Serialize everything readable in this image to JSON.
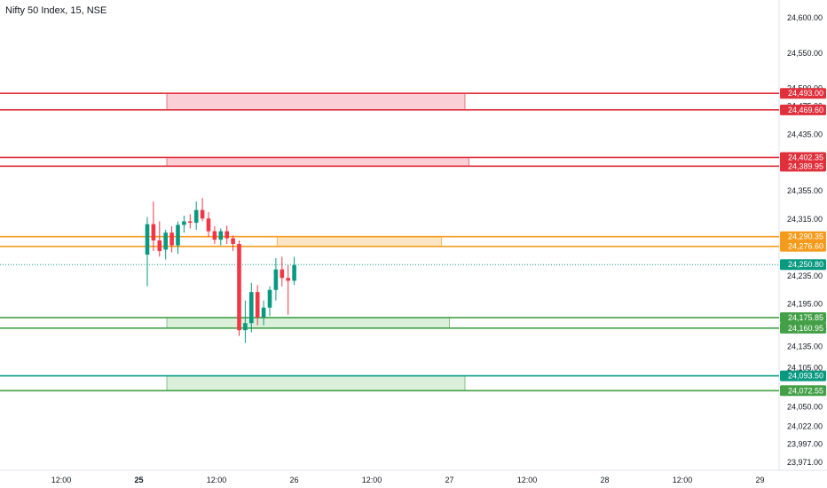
{
  "header": {
    "title": "Nifty 50 Index, 15, NSE"
  },
  "colors": {
    "red": "#e0303c",
    "red_fill": "#f9c8cf",
    "orange": "#f59b1c",
    "orange_fill": "#fde2bb",
    "green": "#43a047",
    "green_fill": "#d3edd4",
    "teal": "#089981",
    "candle_up": "#089981",
    "candle_down": "#f23645",
    "last_price": "#089981"
  },
  "chart_data": {
    "type": "candlestick",
    "symbol": "Nifty 50 Index, 15, NSE",
    "x_ticks": [
      {
        "label": "12:00",
        "bold": false
      },
      {
        "label": "25",
        "bold": true
      },
      {
        "label": "12:00",
        "bold": false
      },
      {
        "label": "26",
        "bold": false
      },
      {
        "label": "12:00",
        "bold": false
      },
      {
        "label": "27",
        "bold": false
      },
      {
        "label": "12:00",
        "bold": false
      },
      {
        "label": "28",
        "bold": false
      },
      {
        "label": "12:00",
        "bold": false
      },
      {
        "label": "29",
        "bold": false
      }
    ],
    "y_ticks": [
      "24,600.00",
      "24,550.00",
      "24,500.00",
      "24,475.00",
      "24,435.00",
      "24,355.00",
      "24,315.00",
      "24,235.00",
      "24,195.00",
      "24,135.00",
      "24,105.00",
      "24,050.00",
      "24,022.00",
      "23,997.00",
      "23,971.00"
    ],
    "ylim": [
      23960,
      24625
    ],
    "last_price": {
      "value": 24250.8,
      "label": "24,250.80"
    },
    "levels": [
      {
        "value": 24493.0,
        "label": "24,493.00",
        "color": "red"
      },
      {
        "value": 24469.6,
        "label": "24,469.60",
        "color": "red"
      },
      {
        "value": 24402.35,
        "label": "24,402.35",
        "color": "red"
      },
      {
        "value": 24389.95,
        "label": "24,389.95",
        "color": "red"
      },
      {
        "value": 24290.35,
        "label": "24,290.35",
        "color": "orange"
      },
      {
        "value": 24276.6,
        "label": "24,276.60",
        "color": "orange"
      },
      {
        "value": 24175.85,
        "label": "24,175.85",
        "color": "green"
      },
      {
        "value": 24160.95,
        "label": "24,160.95",
        "color": "green"
      },
      {
        "value": 24093.5,
        "label": "24,093.50",
        "color": "teal"
      },
      {
        "value": 24072.55,
        "label": "24,072.55",
        "color": "green"
      }
    ],
    "zones": [
      {
        "top": 24493.0,
        "bottom": 24469.6,
        "x_start": 1.36,
        "x_end": 5.2,
        "color": "red"
      },
      {
        "top": 24402.35,
        "bottom": 24389.95,
        "x_start": 1.36,
        "x_end": 5.25,
        "color": "red"
      },
      {
        "top": 24290.35,
        "bottom": 24276.6,
        "x_start": 2.78,
        "x_end": 4.9,
        "color": "orange"
      },
      {
        "top": 24175.85,
        "bottom": 24160.95,
        "x_start": 1.36,
        "x_end": 5.0,
        "color": "green"
      },
      {
        "top": 24093.5,
        "bottom": 24072.55,
        "x_start": 1.36,
        "x_end": 5.2,
        "color": "green"
      }
    ],
    "candles": [
      {
        "o": 24265,
        "h": 24318,
        "l": 24220,
        "c": 24308
      },
      {
        "o": 24308,
        "h": 24340,
        "l": 24270,
        "c": 24285
      },
      {
        "o": 24285,
        "h": 24312,
        "l": 24262,
        "c": 24270
      },
      {
        "o": 24272,
        "h": 24300,
        "l": 24258,
        "c": 24296
      },
      {
        "o": 24296,
        "h": 24305,
        "l": 24268,
        "c": 24278
      },
      {
        "o": 24278,
        "h": 24312,
        "l": 24266,
        "c": 24307
      },
      {
        "o": 24307,
        "h": 24320,
        "l": 24296,
        "c": 24312
      },
      {
        "o": 24312,
        "h": 24322,
        "l": 24302,
        "c": 24310
      },
      {
        "o": 24310,
        "h": 24340,
        "l": 24300,
        "c": 24328
      },
      {
        "o": 24328,
        "h": 24345,
        "l": 24312,
        "c": 24316
      },
      {
        "o": 24316,
        "h": 24325,
        "l": 24290,
        "c": 24298
      },
      {
        "o": 24298,
        "h": 24305,
        "l": 24280,
        "c": 24286
      },
      {
        "o": 24286,
        "h": 24302,
        "l": 24278,
        "c": 24298
      },
      {
        "o": 24298,
        "h": 24306,
        "l": 24280,
        "c": 24288
      },
      {
        "o": 24288,
        "h": 24292,
        "l": 24270,
        "c": 24280
      },
      {
        "o": 24280,
        "h": 24285,
        "l": 24150,
        "c": 24158
      },
      {
        "o": 24158,
        "h": 24200,
        "l": 24140,
        "c": 24168
      },
      {
        "o": 24168,
        "h": 24225,
        "l": 24155,
        "c": 24212
      },
      {
        "o": 24212,
        "h": 24222,
        "l": 24165,
        "c": 24176
      },
      {
        "o": 24176,
        "h": 24200,
        "l": 24165,
        "c": 24190
      },
      {
        "o": 24190,
        "h": 24220,
        "l": 24178,
        "c": 24215
      },
      {
        "o": 24215,
        "h": 24260,
        "l": 24200,
        "c": 24244
      },
      {
        "o": 24244,
        "h": 24262,
        "l": 24220,
        "c": 24232
      },
      {
        "o": 24232,
        "h": 24250,
        "l": 24180,
        "c": 24228
      },
      {
        "o": 24228,
        "h": 24262,
        "l": 24222,
        "c": 24250
      }
    ]
  }
}
